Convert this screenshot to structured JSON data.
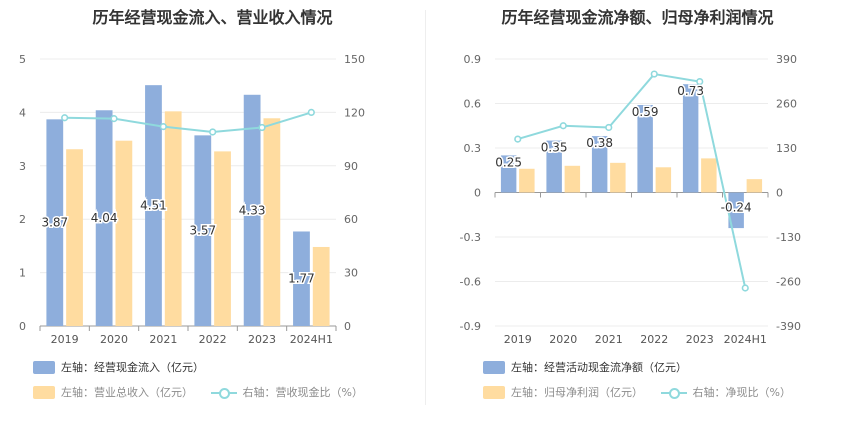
{
  "charts": {
    "left": {
      "title": "历年经营现金流入、营业收入情况",
      "legend": {
        "s1": "左轴：经营现金流入（亿元）",
        "s2": "左轴：营业总收入（亿元）",
        "s3": "右轴：营收现金比（%）"
      }
    },
    "right": {
      "title": "历年经营现金流净额、归母净利润情况",
      "legend": {
        "s1": "左轴：经营活动现金流净额（亿元）",
        "s2": "左轴：归母净利润（亿元）",
        "s3": "右轴：净现比（%）"
      }
    }
  },
  "colors": {
    "blue": "#8eaedc",
    "orange": "#ffdca0",
    "teal": "#8fd9dd"
  },
  "chart_data": [
    {
      "type": "bar",
      "title": "历年经营现金流入、营业收入情况",
      "categories": [
        "2019",
        "2020",
        "2021",
        "2022",
        "2023",
        "2024H1"
      ],
      "left_ticks": [
        "0",
        "1",
        "2",
        "3",
        "4",
        "5"
      ],
      "right_ticks": [
        "0",
        "30",
        "60",
        "90",
        "120",
        "150"
      ],
      "ylim": [
        0,
        5
      ],
      "y2lim": [
        0,
        150
      ],
      "series": [
        {
          "name": "左轴：经营现金流入（亿元）",
          "axis": "left",
          "kind": "bar",
          "color": "#8eaedc",
          "values": [
            3.87,
            4.04,
            4.51,
            3.57,
            4.33,
            1.77
          ],
          "labels": [
            "3.87",
            "4.04",
            "4.51",
            "3.57",
            "4.33",
            "1.77"
          ]
        },
        {
          "name": "左轴：营业总收入（亿元）",
          "axis": "left",
          "kind": "bar",
          "color": "#ffdca0",
          "values": [
            3.31,
            3.47,
            4.02,
            3.27,
            3.89,
            1.48
          ]
        },
        {
          "name": "右轴：营收现金比（%）",
          "axis": "right",
          "kind": "line",
          "color": "#8fd9dd",
          "values": [
            117,
            116.5,
            112,
            109,
            111.5,
            120
          ]
        }
      ]
    },
    {
      "type": "bar",
      "title": "历年经营现金流净额、归母净利润情况",
      "categories": [
        "2019",
        "2020",
        "2021",
        "2022",
        "2023",
        "2024H1"
      ],
      "left_ticks": [
        "-0.9",
        "-0.6",
        "-0.3",
        "0",
        "0.3",
        "0.6",
        "0.9"
      ],
      "right_ticks": [
        "-390",
        "-260",
        "-130",
        "0",
        "130",
        "260",
        "390"
      ],
      "ylim": [
        -0.9,
        0.9
      ],
      "y2lim": [
        -390,
        390
      ],
      "series": [
        {
          "name": "左轴：经营活动现金流净额（亿元）",
          "axis": "left",
          "kind": "bar",
          "color": "#8eaedc",
          "values": [
            0.25,
            0.35,
            0.38,
            0.59,
            0.73,
            -0.24
          ],
          "labels": [
            "0.25",
            "0.35",
            "0.38",
            "0.59",
            "0.73",
            "-0.24"
          ]
        },
        {
          "name": "左轴：归母净利润（亿元）",
          "axis": "left",
          "kind": "bar",
          "color": "#ffdca0",
          "values": [
            0.16,
            0.18,
            0.2,
            0.17,
            0.23,
            0.09
          ]
        },
        {
          "name": "右轴：净现比（%）",
          "axis": "right",
          "kind": "line",
          "color": "#8fd9dd",
          "values": [
            156,
            195,
            190,
            346,
            324,
            -279
          ]
        }
      ]
    }
  ]
}
